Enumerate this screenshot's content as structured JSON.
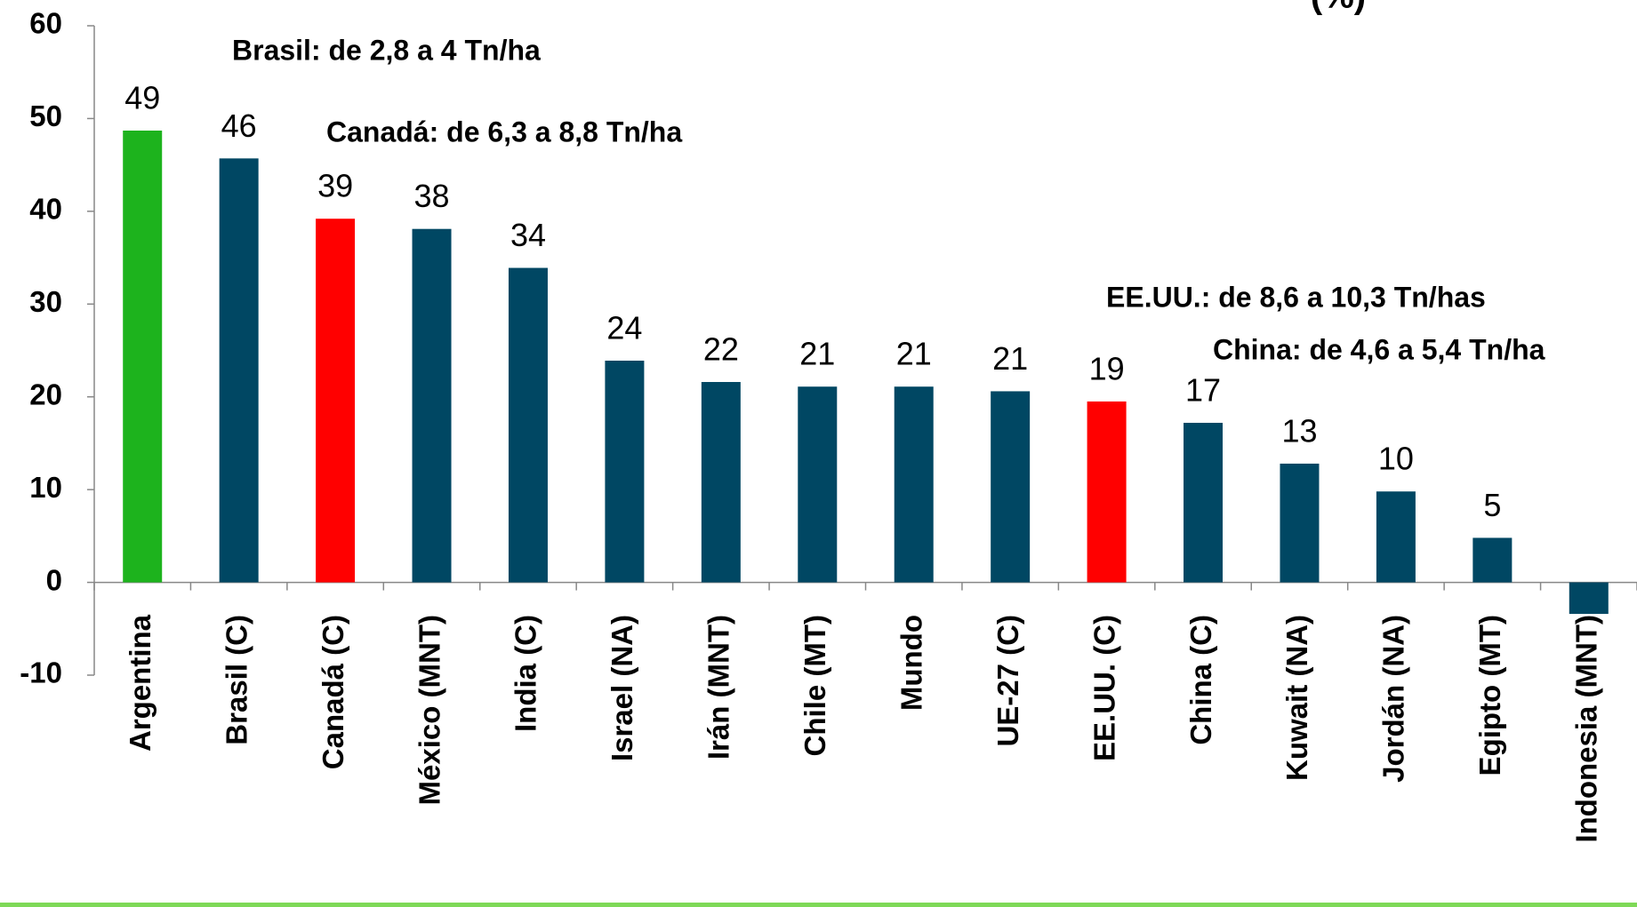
{
  "chart_data": {
    "type": "bar",
    "title": "(%)",
    "categories": [
      "Argentina",
      "Brasil (C)",
      "Canadá (C)",
      "México (MNT)",
      "India (C)",
      "Israel (NA)",
      "Irán (MNT)",
      "Chile (MT)",
      "Mundo",
      "UE-27 (C)",
      "EE.UU. (C)",
      "China (C)",
      "Kuwait (NA)",
      "Jordán (NA)",
      "Egipto (MT)",
      "Indonesia (MNT)"
    ],
    "values": [
      48.7,
      45.7,
      39.2,
      38.1,
      33.9,
      23.9,
      21.6,
      21.1,
      21.1,
      20.6,
      19.5,
      17.2,
      12.8,
      9.8,
      4.8,
      -3.4
    ],
    "value_labels": [
      "49",
      "46",
      "39",
      "38",
      "34",
      "24",
      "22",
      "21",
      "21",
      "21",
      "19",
      "17",
      "13",
      "10",
      "5",
      null
    ],
    "colors": [
      "#1db31d",
      "#004763",
      "#ff0000",
      "#004763",
      "#004763",
      "#004763",
      "#004763",
      "#004763",
      "#004763",
      "#004763",
      "#ff0000",
      "#004763",
      "#004763",
      "#004763",
      "#004763",
      "#004763"
    ],
    "ylim": [
      -10,
      60
    ],
    "yticks": [
      -10,
      0,
      10,
      20,
      30,
      40,
      50,
      60
    ],
    "annotations": [
      "Brasil: de 2,8 a 4 Tn/ha",
      "Canadá: de 6,3 a 8,8 Tn/ha",
      "EE.UU.: de 8,6 a 10,3 Tn/has",
      "China: de 4,6 a 5,4 Tn/ha"
    ]
  }
}
